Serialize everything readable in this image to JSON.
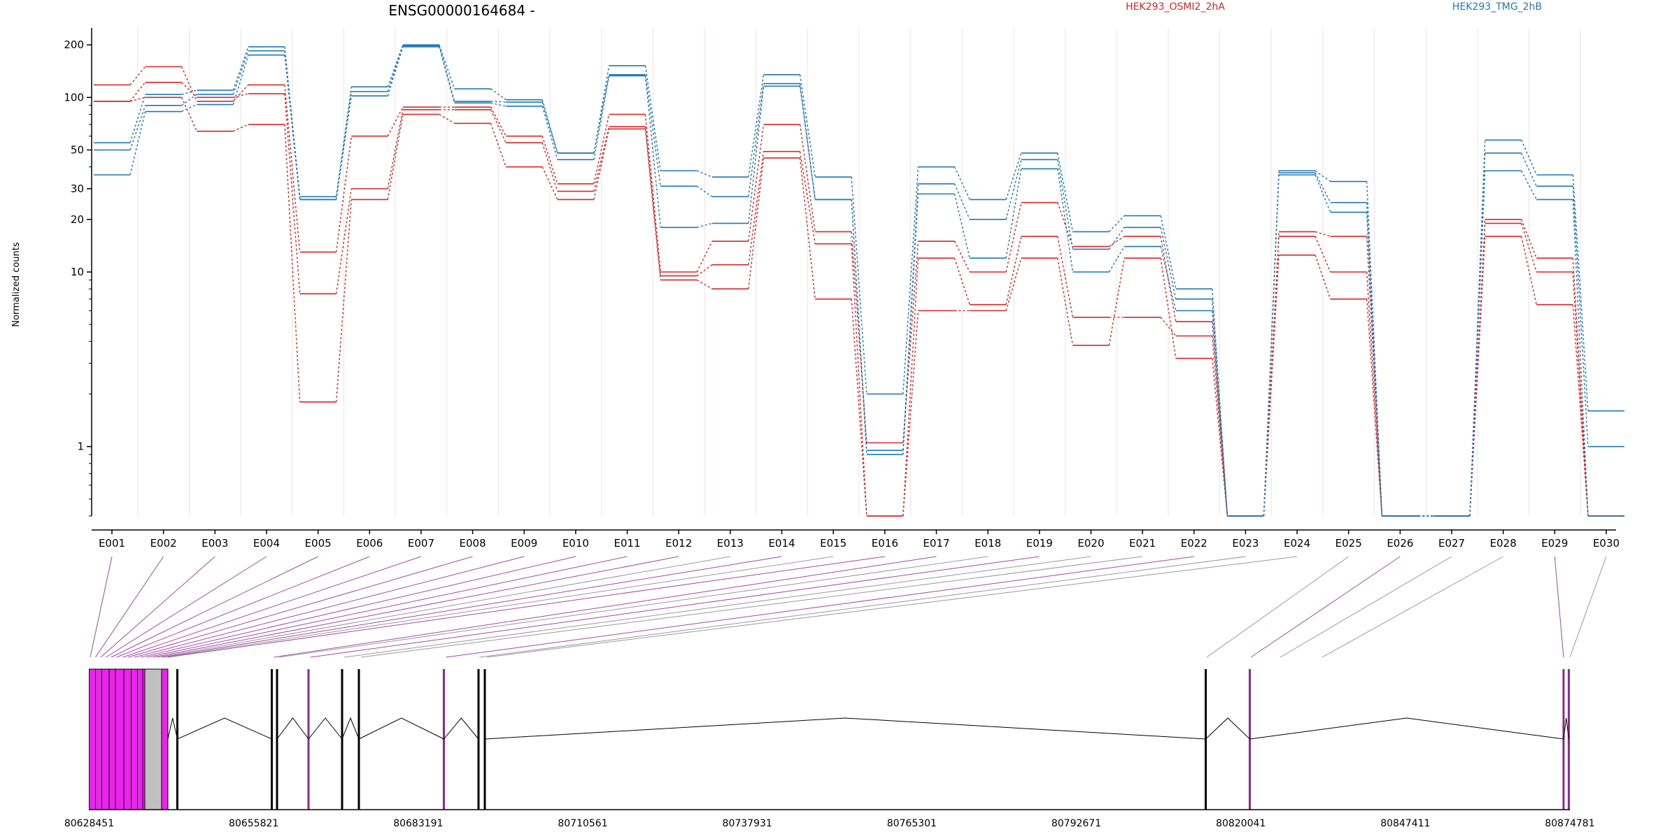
{
  "chart_data": {
    "type": "line",
    "title": "ENSG00000164684 -",
    "ylabel": "Normalized counts",
    "xlabel": "",
    "yscale": "log",
    "ylim": [
      0.4,
      250
    ],
    "yticks": [
      1,
      10,
      20,
      30,
      50,
      100,
      200
    ],
    "grid": false,
    "legend_placement": "top",
    "legend": [
      {
        "label": "HEK293_OSMI2_2hA",
        "color": "#d62728"
      },
      {
        "label": "HEK293_TMG_2hB",
        "color": "#1f77b4"
      }
    ],
    "categories": [
      "E001",
      "E002",
      "E003",
      "E004",
      "E005",
      "E006",
      "E007",
      "E008",
      "E009",
      "E010",
      "E011",
      "E012",
      "E013",
      "E014",
      "E015",
      "E016",
      "E017",
      "E018",
      "E019",
      "E020",
      "E021",
      "E022",
      "E023",
      "E024",
      "E025",
      "E026",
      "E027",
      "E028",
      "E029",
      "E030"
    ],
    "series": [
      {
        "color": "#d62728",
        "values": [
          118,
          150,
          95,
          118,
          13,
          60,
          88,
          88,
          60,
          32,
          80,
          10,
          15,
          70,
          17,
          1.05,
          15,
          10,
          25,
          14,
          16,
          5.2,
          0.4,
          17,
          16,
          0.4,
          0.4,
          20,
          12,
          0.4
        ]
      },
      {
        "color": "#d62728",
        "values": [
          95,
          122,
          100,
          105,
          7.5,
          30,
          85,
          85,
          55,
          29,
          68,
          9.5,
          11,
          49,
          14.5,
          0.4,
          12,
          6.5,
          16,
          5.5,
          5.5,
          4.3,
          0.4,
          16,
          10,
          0.4,
          0.4,
          19,
          10,
          0.4
        ]
      },
      {
        "color": "#d62728",
        "values": [
          95,
          100,
          64,
          70,
          1.8,
          26,
          80,
          71,
          40,
          26,
          66,
          9,
          8,
          45,
          7,
          0.4,
          6,
          6,
          12,
          3.8,
          12,
          3.2,
          0.4,
          12.5,
          7,
          0.4,
          0.4,
          16,
          6.5,
          0.4
        ]
      },
      {
        "color": "#1f77b4",
        "values": [
          55,
          104,
          110,
          195,
          27,
          115,
          200,
          112,
          97,
          48,
          152,
          38,
          35,
          135,
          35,
          2,
          40,
          26,
          48,
          17,
          21,
          8,
          0.4,
          38,
          33,
          0.4,
          0.4,
          57,
          36,
          1.6
        ]
      },
      {
        "color": "#1f77b4",
        "values": [
          50,
          90,
          104,
          185,
          26,
          108,
          198,
          95,
          94,
          48,
          135,
          31,
          27,
          120,
          26,
          0.95,
          32,
          20,
          44,
          13.5,
          18,
          7,
          0.4,
          37,
          25,
          0.4,
          0.4,
          48,
          31,
          1
        ]
      },
      {
        "color": "#1f77b4",
        "values": [
          36,
          83,
          91,
          175,
          26,
          102,
          195,
          93,
          89,
          44,
          133,
          18,
          19,
          116,
          26,
          0.9,
          28,
          12,
          39,
          10,
          14,
          6,
          0.4,
          36,
          22,
          0.4,
          0.4,
          38,
          26,
          0.4
        ]
      }
    ],
    "gene_model": {
      "coordinate_ticks": [
        "80628451",
        "80655821",
        "80683191",
        "80710561",
        "80737931",
        "80765301",
        "80792671",
        "80820041",
        "80847411",
        "80874781"
      ]
    }
  }
}
